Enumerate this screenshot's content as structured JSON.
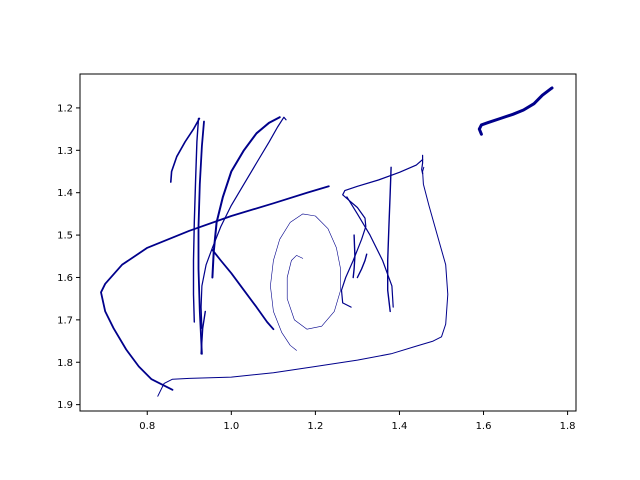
{
  "chart_data": {
    "type": "line",
    "title": "",
    "xlabel": "",
    "ylabel": "",
    "xlim": [
      0.64,
      1.82
    ],
    "ylim": [
      1.915,
      1.12
    ],
    "y_inverted": true,
    "grid": false,
    "legend": "none",
    "stroke_color": "#00008b",
    "x_ticks": [
      {
        "value": 0.8,
        "label": "0.8"
      },
      {
        "value": 1.0,
        "label": "1.0"
      },
      {
        "value": 1.2,
        "label": "1.2"
      },
      {
        "value": 1.4,
        "label": "1.4"
      },
      {
        "value": 1.6,
        "label": "1.6"
      },
      {
        "value": 1.8,
        "label": "1.8"
      }
    ],
    "y_ticks": [
      {
        "value": 1.2,
        "label": "1.2"
      },
      {
        "value": 1.3,
        "label": "1.3"
      },
      {
        "value": 1.4,
        "label": "1.4"
      },
      {
        "value": 1.5,
        "label": "1.5"
      },
      {
        "value": 1.6,
        "label": "1.6"
      },
      {
        "value": 1.7,
        "label": "1.7"
      },
      {
        "value": 1.8,
        "label": "1.8"
      },
      {
        "value": 1.9,
        "label": "1.9"
      }
    ],
    "series": [
      {
        "width": 1.6,
        "points": [
          [
            0.856,
            1.375
          ],
          [
            0.858,
            1.35
          ],
          [
            0.87,
            1.315
          ],
          [
            0.89,
            1.28
          ],
          [
            0.91,
            1.25
          ],
          [
            0.924,
            1.225
          ]
        ]
      },
      {
        "width": 1.4,
        "points": [
          [
            0.922,
            1.225
          ],
          [
            0.918,
            1.28
          ],
          [
            0.915,
            1.37
          ],
          [
            0.912,
            1.47
          ],
          [
            0.91,
            1.56
          ],
          [
            0.91,
            1.64
          ],
          [
            0.912,
            1.705
          ]
        ]
      },
      {
        "width": 1.8,
        "points": [
          [
            0.935,
            1.232
          ],
          [
            0.93,
            1.29
          ],
          [
            0.925,
            1.38
          ],
          [
            0.922,
            1.48
          ],
          [
            0.922,
            1.58
          ],
          [
            0.925,
            1.68
          ],
          [
            0.93,
            1.78
          ]
        ]
      },
      {
        "width": 1.4,
        "points": [
          [
            0.928,
            1.78
          ],
          [
            0.932,
            1.72
          ],
          [
            0.938,
            1.68
          ]
        ]
      },
      {
        "width": 1.2,
        "points": [
          [
            0.93,
            1.72
          ],
          [
            0.928,
            1.67
          ],
          [
            0.93,
            1.62
          ],
          [
            0.94,
            1.57
          ],
          [
            0.955,
            1.53
          ],
          [
            0.975,
            1.48
          ],
          [
            1.0,
            1.43
          ],
          [
            1.03,
            1.38
          ],
          [
            1.06,
            1.33
          ],
          [
            1.09,
            1.28
          ],
          [
            1.11,
            1.245
          ],
          [
            1.125,
            1.222
          ],
          [
            1.13,
            1.228
          ]
        ]
      },
      {
        "width": 2.0,
        "points": [
          [
            0.955,
            1.6
          ],
          [
            0.958,
            1.54
          ],
          [
            0.965,
            1.47
          ],
          [
            0.98,
            1.41
          ],
          [
            1.0,
            1.35
          ],
          [
            1.03,
            1.3
          ],
          [
            1.06,
            1.26
          ],
          [
            1.09,
            1.235
          ],
          [
            1.115,
            1.222
          ]
        ]
      },
      {
        "width": 1.8,
        "points": [
          [
            0.955,
            1.535
          ],
          [
            0.975,
            1.56
          ],
          [
            1.0,
            1.59
          ],
          [
            1.03,
            1.63
          ],
          [
            1.06,
            1.67
          ],
          [
            1.085,
            1.705
          ],
          [
            1.1,
            1.722
          ]
        ]
      },
      {
        "width": 1.8,
        "points": [
          [
            1.232,
            1.385
          ],
          [
            1.18,
            1.4
          ],
          [
            1.1,
            1.425
          ],
          [
            1.0,
            1.455
          ],
          [
            0.9,
            1.49
          ],
          [
            0.8,
            1.53
          ],
          [
            0.74,
            1.57
          ],
          [
            0.7,
            1.615
          ],
          [
            0.69,
            1.635
          ],
          [
            0.7,
            1.68
          ],
          [
            0.72,
            1.72
          ],
          [
            0.75,
            1.77
          ],
          [
            0.78,
            1.81
          ],
          [
            0.81,
            1.84
          ],
          [
            0.84,
            1.855
          ],
          [
            0.86,
            1.865
          ]
        ]
      },
      {
        "width": 0.6,
        "points": [
          [
            1.17,
            1.555
          ],
          [
            1.155,
            1.548
          ],
          [
            1.143,
            1.56
          ],
          [
            1.133,
            1.6
          ],
          [
            1.133,
            1.65
          ],
          [
            1.15,
            1.7
          ],
          [
            1.18,
            1.722
          ],
          [
            1.215,
            1.715
          ],
          [
            1.245,
            1.68
          ],
          [
            1.26,
            1.63
          ],
          [
            1.26,
            1.58
          ],
          [
            1.25,
            1.53
          ],
          [
            1.23,
            1.485
          ],
          [
            1.2,
            1.455
          ],
          [
            1.17,
            1.45
          ],
          [
            1.14,
            1.47
          ],
          [
            1.115,
            1.51
          ],
          [
            1.1,
            1.56
          ],
          [
            1.093,
            1.62
          ],
          [
            1.1,
            1.68
          ],
          [
            1.12,
            1.73
          ],
          [
            1.14,
            1.76
          ],
          [
            1.155,
            1.772
          ]
        ]
      },
      {
        "width": 1.2,
        "points": [
          [
            1.285,
            1.67
          ],
          [
            1.265,
            1.66
          ],
          [
            1.262,
            1.63
          ],
          [
            1.272,
            1.6
          ],
          [
            1.29,
            1.56
          ],
          [
            1.31,
            1.51
          ],
          [
            1.32,
            1.48
          ],
          [
            1.318,
            1.46
          ],
          [
            1.3,
            1.435
          ],
          [
            1.28,
            1.418
          ],
          [
            1.265,
            1.405
          ],
          [
            1.27,
            1.395
          ],
          [
            1.3,
            1.385
          ],
          [
            1.35,
            1.37
          ],
          [
            1.4,
            1.352
          ],
          [
            1.44,
            1.335
          ],
          [
            1.455,
            1.322
          ]
        ]
      },
      {
        "width": 1.4,
        "points": [
          [
            1.29,
            1.6
          ],
          [
            1.292,
            1.58
          ],
          [
            1.294,
            1.55
          ],
          [
            1.292,
            1.5
          ]
        ]
      },
      {
        "width": 1.4,
        "points": [
          [
            1.3,
            1.6
          ],
          [
            1.31,
            1.58
          ],
          [
            1.318,
            1.56
          ],
          [
            1.322,
            1.545
          ]
        ]
      },
      {
        "width": 1.4,
        "points": [
          [
            1.38,
            1.34
          ],
          [
            1.378,
            1.4
          ],
          [
            1.375,
            1.48
          ],
          [
            1.372,
            1.56
          ],
          [
            1.372,
            1.63
          ],
          [
            1.378,
            1.68
          ]
        ]
      },
      {
        "width": 1.2,
        "points": [
          [
            1.275,
            1.41
          ],
          [
            1.3,
            1.45
          ],
          [
            1.33,
            1.5
          ],
          [
            1.36,
            1.56
          ],
          [
            1.382,
            1.62
          ],
          [
            1.385,
            1.67
          ]
        ]
      },
      {
        "width": 1.0,
        "points": [
          [
            0.825,
            1.88
          ],
          [
            0.84,
            1.85
          ],
          [
            0.86,
            1.84
          ],
          [
            0.9,
            1.838
          ],
          [
            1.0,
            1.835
          ],
          [
            1.1,
            1.825
          ],
          [
            1.2,
            1.81
          ],
          [
            1.3,
            1.795
          ],
          [
            1.38,
            1.78
          ],
          [
            1.44,
            1.762
          ],
          [
            1.48,
            1.75
          ],
          [
            1.5,
            1.74
          ],
          [
            1.51,
            1.71
          ],
          [
            1.515,
            1.64
          ],
          [
            1.51,
            1.57
          ],
          [
            1.49,
            1.5
          ],
          [
            1.47,
            1.43
          ],
          [
            1.457,
            1.38
          ],
          [
            1.455,
            1.35
          ],
          [
            1.458,
            1.34
          ]
        ]
      },
      {
        "width": 1.2,
        "points": [
          [
            1.455,
            1.312
          ],
          [
            1.455,
            1.33
          ],
          [
            1.453,
            1.345
          ],
          [
            1.455,
            1.355
          ]
        ]
      },
      {
        "width": 3.0,
        "points": [
          [
            1.595,
            1.262
          ],
          [
            1.59,
            1.25
          ],
          [
            1.595,
            1.24
          ],
          [
            1.61,
            1.235
          ],
          [
            1.64,
            1.225
          ],
          [
            1.67,
            1.215
          ],
          [
            1.695,
            1.205
          ],
          [
            1.72,
            1.19
          ],
          [
            1.74,
            1.17
          ],
          [
            1.76,
            1.155
          ],
          [
            1.763,
            1.153
          ]
        ]
      }
    ]
  }
}
